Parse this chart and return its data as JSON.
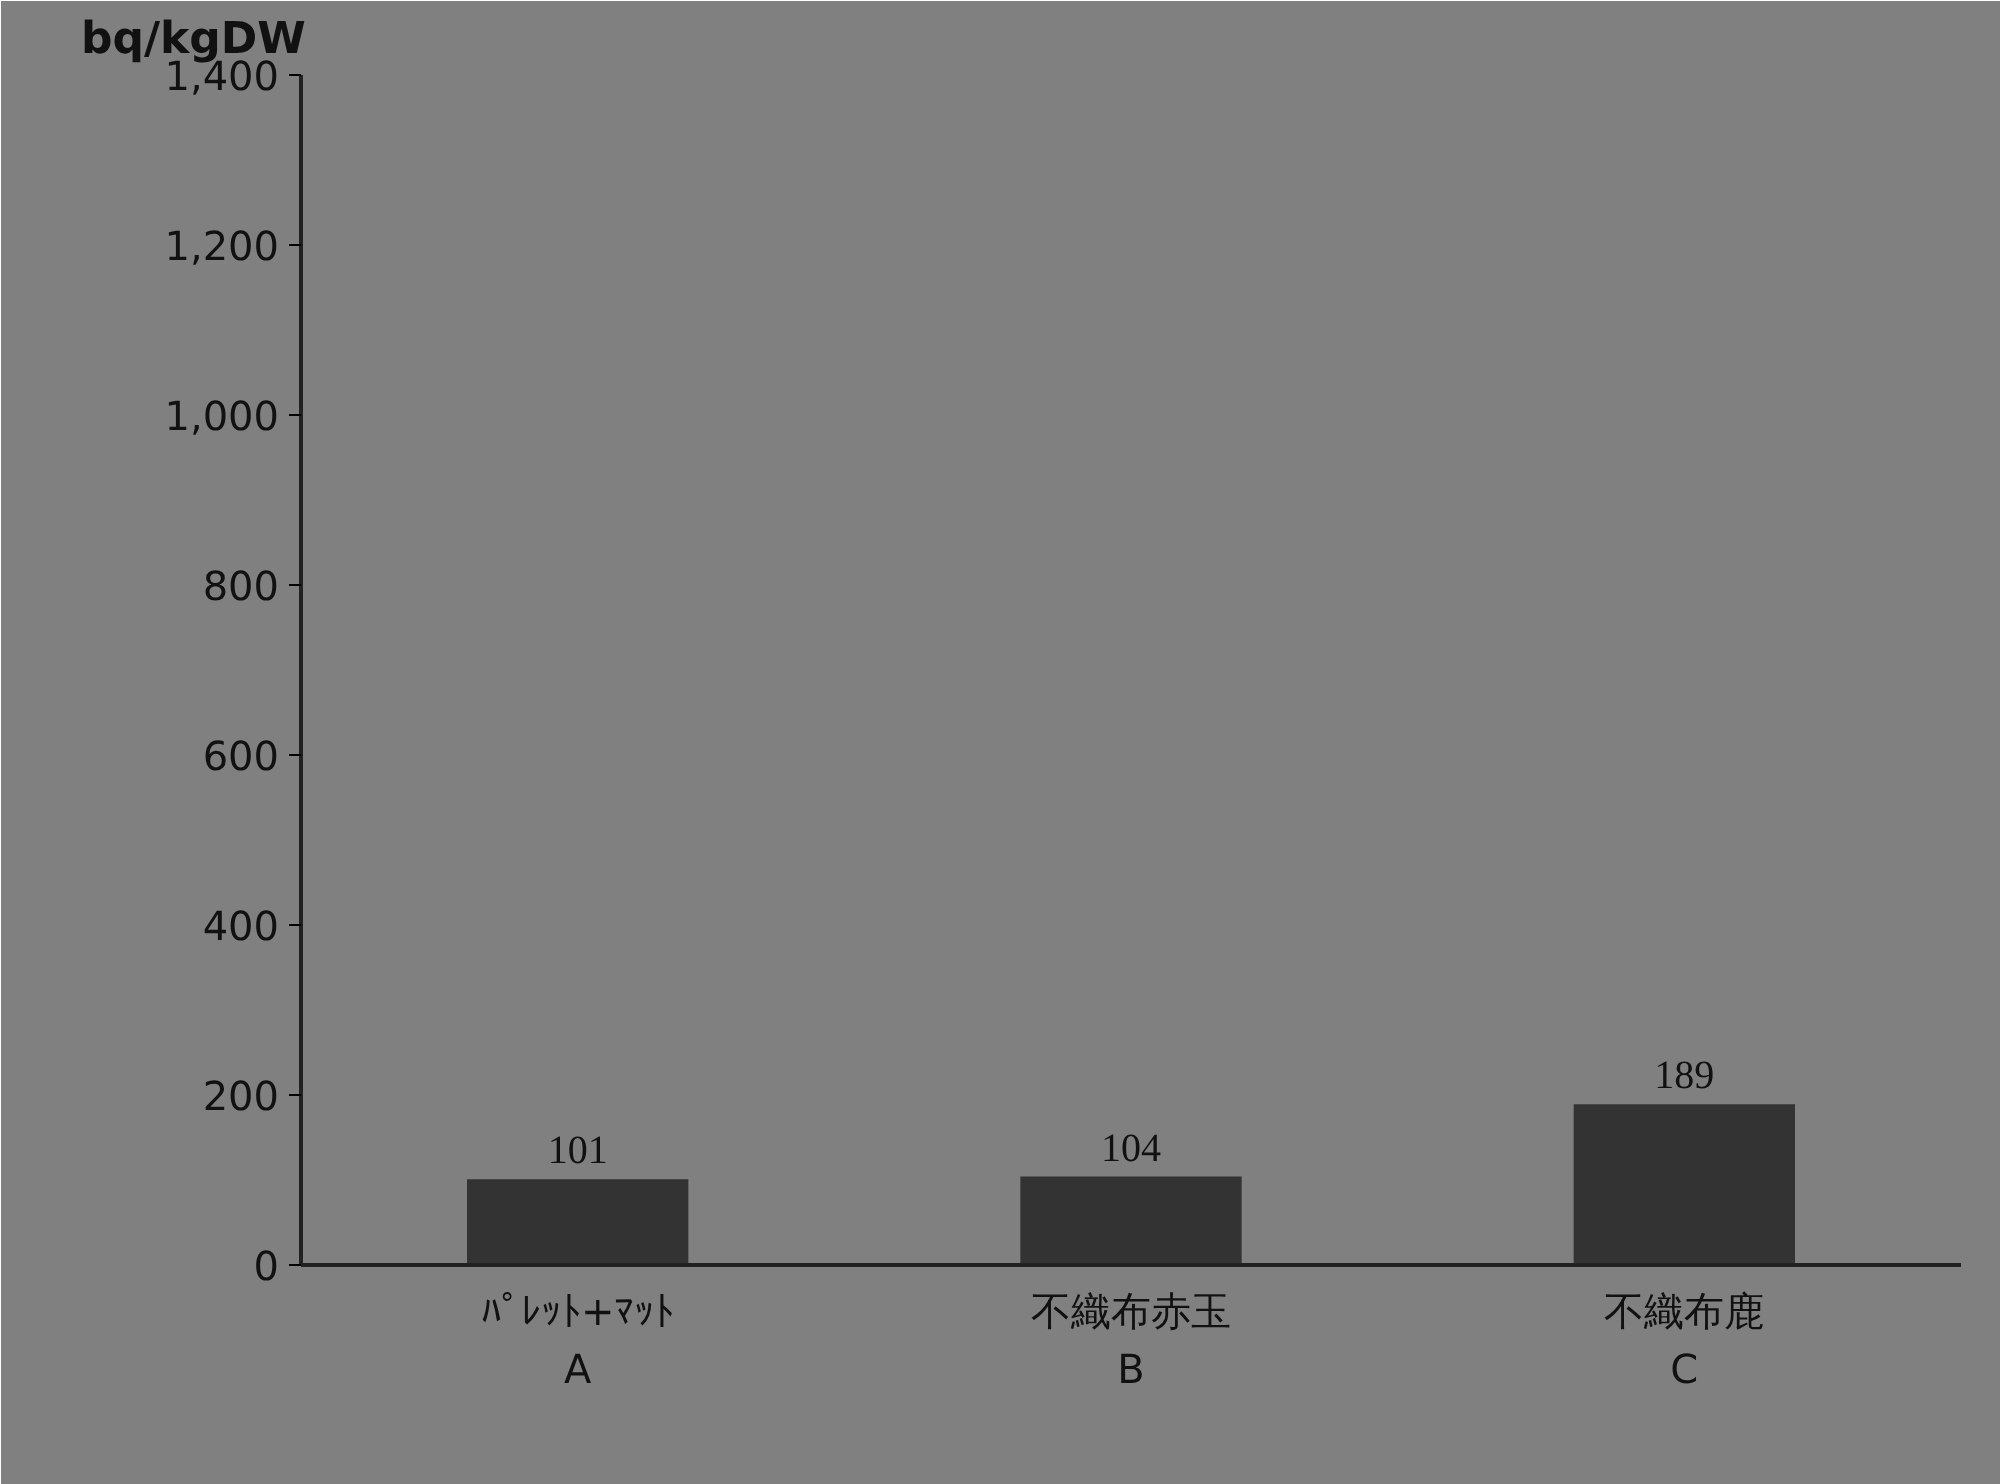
{
  "chart_data": {
    "type": "bar",
    "ylabel": "bq/kgDW",
    "categories": [
      "ﾊﾟﾚｯﾄ+ﾏｯﾄ\nA",
      "不織布赤玉\nB",
      "不織布鹿\nC"
    ],
    "values": [
      101,
      104,
      189
    ],
    "color": "#333333",
    "data_labels": true,
    "grid": false,
    "ylim": [
      0,
      1400
    ],
    "yticks": [
      0,
      200,
      400,
      600,
      800,
      {
        "value": 1000,
        "label": "1,000"
      },
      {
        "value": 1200,
        "label": "1,200"
      },
      {
        "value": 1400,
        "label": "1,400"
      }
    ]
  }
}
